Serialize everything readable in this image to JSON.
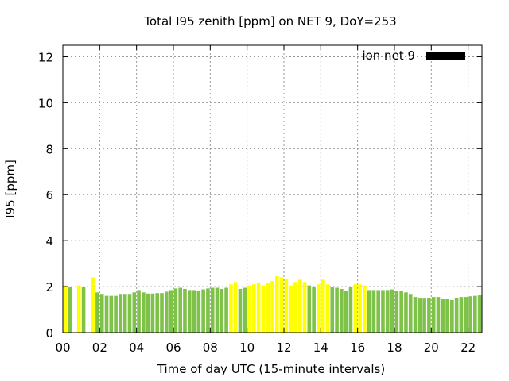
{
  "chart_data": {
    "type": "bar",
    "title": "Total I95 zenith [ppm] on NET 9, DoY=253",
    "xlabel": "Time of day UTC (15-minute intervals)",
    "ylabel": "I95 [ppm]",
    "xlim": [
      0,
      22.75
    ],
    "ylim": [
      0,
      12.5
    ],
    "x_ticks": [
      "00",
      "02",
      "04",
      "06",
      "08",
      "10",
      "12",
      "14",
      "16",
      "18",
      "20",
      "22"
    ],
    "y_ticks": [
      "0",
      "2",
      "4",
      "6",
      "8",
      "10",
      "12"
    ],
    "grid": true,
    "legend": {
      "label": "ion net 9",
      "position": "top-right",
      "color": "#000000"
    },
    "colors": {
      "normal": "#7fc24a",
      "elevated": "#ffff00"
    },
    "interval_hours": 0.25,
    "values": [
      2.05,
      2.0,
      0,
      2.05,
      2.0,
      0,
      2.4,
      1.75,
      1.65,
      1.6,
      1.6,
      1.6,
      1.65,
      1.65,
      1.65,
      1.75,
      1.85,
      1.75,
      1.7,
      1.7,
      1.72,
      1.72,
      1.78,
      1.85,
      1.92,
      1.95,
      1.9,
      1.85,
      1.85,
      1.82,
      1.88,
      1.92,
      1.95,
      1.95,
      1.9,
      1.95,
      2.1,
      2.2,
      1.9,
      1.95,
      2.05,
      2.1,
      2.15,
      2.05,
      2.15,
      2.25,
      2.45,
      2.4,
      2.35,
      2.05,
      2.2,
      2.3,
      2.2,
      2.05,
      2.0,
      2.1,
      2.3,
      2.1,
      2.0,
      1.95,
      1.9,
      1.8,
      2.0,
      2.1,
      2.1,
      2.05,
      1.85,
      1.85,
      1.85,
      1.85,
      1.85,
      1.88,
      1.82,
      1.8,
      1.75,
      1.65,
      1.55,
      1.48,
      1.48,
      1.5,
      1.55,
      1.55,
      1.45,
      1.45,
      1.42,
      1.5,
      1.55,
      1.55,
      1.58,
      1.6,
      1.62
    ],
    "series_color_index": [
      1,
      0,
      0,
      1,
      0,
      0,
      1,
      0,
      0,
      0,
      0,
      0,
      0,
      0,
      0,
      0,
      0,
      0,
      0,
      0,
      0,
      0,
      0,
      0,
      0,
      0,
      0,
      0,
      0,
      0,
      0,
      0,
      0,
      0,
      0,
      0,
      1,
      1,
      0,
      0,
      1,
      1,
      1,
      1,
      1,
      1,
      1,
      1,
      1,
      1,
      1,
      1,
      1,
      0,
      0,
      1,
      1,
      1,
      0,
      0,
      0,
      0,
      0,
      1,
      1,
      1,
      0,
      0,
      0,
      0,
      0,
      0,
      0,
      0,
      0,
      0,
      0,
      0,
      0,
      0,
      0,
      0,
      0,
      0,
      0,
      0,
      0,
      0,
      0,
      0,
      0
    ]
  }
}
